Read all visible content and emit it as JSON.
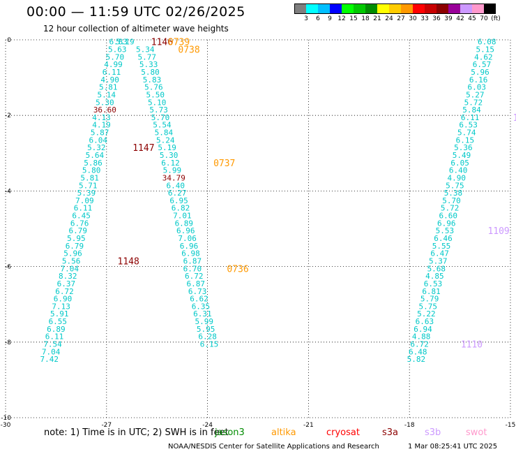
{
  "header": {
    "title": "00:00 — 11:59 UTC 02/26/2025",
    "subtitle": "12 hour collection of altimeter wave heights"
  },
  "colorbar": {
    "unit": "(ft)",
    "labels": [
      "3",
      "6",
      "9",
      "12",
      "15",
      "18",
      "21",
      "24",
      "27",
      "30",
      "33",
      "36",
      "39",
      "42",
      "45",
      "70"
    ],
    "colors": [
      "#7f7f7f",
      "#00ffff",
      "#00bfff",
      "#0000ff",
      "#00ff00",
      "#00c800",
      "#008c00",
      "#ffff00",
      "#ffcc00",
      "#ff9900",
      "#ff0000",
      "#c80000",
      "#8c0000",
      "#990099",
      "#cc99ff",
      "#ff99cc",
      "#000000"
    ]
  },
  "chart_data": {
    "type": "scatter",
    "xlim": [
      -30,
      -15
    ],
    "ylim": [
      -10,
      0
    ],
    "xticks": [
      "-30",
      "-27",
      "-24",
      "-21",
      "-18",
      "-15"
    ],
    "yticks": [
      "0",
      "-2",
      "-4",
      "-6",
      "-8",
      "-10"
    ],
    "grid": true,
    "tracks": [
      {
        "name": "track-west",
        "points": [
          {
            "x": -26.45,
            "y": -0.05,
            "label": "5.19"
          },
          {
            "x": -26.65,
            "y": -0.05,
            "label": "6.83"
          },
          {
            "x": -26.68,
            "y": -0.25,
            "label": "5.63"
          },
          {
            "x": -26.75,
            "y": -0.45,
            "label": "5.70"
          },
          {
            "x": -26.8,
            "y": -0.65,
            "label": "4.99"
          },
          {
            "x": -26.85,
            "y": -0.85,
            "label": "6.11"
          },
          {
            "x": -26.9,
            "y": -1.05,
            "label": "4.90"
          },
          {
            "x": -26.95,
            "y": -1.25,
            "label": "5.81"
          },
          {
            "x": -27.0,
            "y": -1.45,
            "label": "5.14"
          },
          {
            "x": -27.05,
            "y": -1.65,
            "label": "5.30"
          },
          {
            "x": -27.05,
            "y": -1.85,
            "label": "36.60",
            "color": "#8c0000"
          },
          {
            "x": -27.15,
            "y": -2.05,
            "label": "4.13"
          },
          {
            "x": -27.15,
            "y": -2.25,
            "label": "4.19"
          },
          {
            "x": -27.2,
            "y": -2.45,
            "label": "5.87"
          },
          {
            "x": -27.25,
            "y": -2.65,
            "label": "6.04"
          },
          {
            "x": -27.3,
            "y": -2.85,
            "label": "5.32"
          },
          {
            "x": -27.35,
            "y": -3.05,
            "label": "5.64"
          },
          {
            "x": -27.4,
            "y": -3.25,
            "label": "5.86"
          },
          {
            "x": -27.45,
            "y": -3.45,
            "label": "5.80"
          },
          {
            "x": -27.5,
            "y": -3.65,
            "label": "5.81"
          },
          {
            "x": -27.55,
            "y": -3.85,
            "label": "5.71"
          },
          {
            "x": -27.6,
            "y": -4.05,
            "label": "5.39"
          },
          {
            "x": -27.65,
            "y": -4.25,
            "label": "7.09"
          },
          {
            "x": -27.7,
            "y": -4.45,
            "label": "6.11"
          },
          {
            "x": -27.75,
            "y": -4.65,
            "label": "6.45"
          },
          {
            "x": -27.8,
            "y": -4.85,
            "label": "6.76"
          },
          {
            "x": -27.85,
            "y": -5.05,
            "label": "6.79"
          },
          {
            "x": -27.9,
            "y": -5.25,
            "label": "5.95"
          },
          {
            "x": -27.95,
            "y": -5.45,
            "label": "6.79"
          },
          {
            "x": -28.0,
            "y": -5.65,
            "label": "5.96"
          },
          {
            "x": -28.05,
            "y": -5.85,
            "label": "5.56"
          },
          {
            "x": -28.1,
            "y": -6.05,
            "label": "7.04"
          },
          {
            "x": -28.15,
            "y": -6.25,
            "label": "8.32"
          },
          {
            "x": -28.2,
            "y": -6.45,
            "label": "6.37"
          },
          {
            "x": -28.25,
            "y": -6.65,
            "label": "6.72"
          },
          {
            "x": -28.3,
            "y": -6.85,
            "label": "6.90"
          },
          {
            "x": -28.35,
            "y": -7.05,
            "label": "7.13"
          },
          {
            "x": -28.4,
            "y": -7.25,
            "label": "5.91"
          },
          {
            "x": -28.45,
            "y": -7.45,
            "label": "6.55"
          },
          {
            "x": -28.5,
            "y": -7.65,
            "label": "6.89"
          },
          {
            "x": -28.55,
            "y": -7.85,
            "label": "6.11"
          },
          {
            "x": -28.6,
            "y": -8.05,
            "label": "7.54"
          },
          {
            "x": -28.65,
            "y": -8.25,
            "label": "7.04"
          },
          {
            "x": -28.7,
            "y": -8.45,
            "label": "7.42"
          }
        ]
      },
      {
        "name": "track-center",
        "points": [
          {
            "x": -25.85,
            "y": -0.25,
            "label": "5.34"
          },
          {
            "x": -25.8,
            "y": -0.45,
            "label": "5.77"
          },
          {
            "x": -25.75,
            "y": -0.65,
            "label": "5.33"
          },
          {
            "x": -25.7,
            "y": -0.85,
            "label": "5.80"
          },
          {
            "x": -25.65,
            "y": -1.05,
            "label": "5.83"
          },
          {
            "x": -25.6,
            "y": -1.25,
            "label": "5.76"
          },
          {
            "x": -25.55,
            "y": -1.45,
            "label": "5.50"
          },
          {
            "x": -25.5,
            "y": -1.65,
            "label": "5.10"
          },
          {
            "x": -25.45,
            "y": -1.85,
            "label": "5.73"
          },
          {
            "x": -25.4,
            "y": -2.05,
            "label": "5.70"
          },
          {
            "x": -25.35,
            "y": -2.25,
            "label": "5.54"
          },
          {
            "x": -25.3,
            "y": -2.45,
            "label": "5.84"
          },
          {
            "x": -25.25,
            "y": -2.65,
            "label": "5.24"
          },
          {
            "x": -25.2,
            "y": -2.85,
            "label": "5.19"
          },
          {
            "x": -25.15,
            "y": -3.05,
            "label": "5.30"
          },
          {
            "x": -25.1,
            "y": -3.25,
            "label": "6.12"
          },
          {
            "x": -25.05,
            "y": -3.45,
            "label": "5.99"
          },
          {
            "x": -25.0,
            "y": -3.65,
            "label": "34.79",
            "color": "#8c0000"
          },
          {
            "x": -24.95,
            "y": -3.85,
            "label": "6.40"
          },
          {
            "x": -24.9,
            "y": -4.05,
            "label": "6.27"
          },
          {
            "x": -24.85,
            "y": -4.25,
            "label": "6.95"
          },
          {
            "x": -24.8,
            "y": -4.45,
            "label": "6.82"
          },
          {
            "x": -24.75,
            "y": -4.65,
            "label": "7.01"
          },
          {
            "x": -24.7,
            "y": -4.85,
            "label": "6.89"
          },
          {
            "x": -24.65,
            "y": -5.05,
            "label": "6.96"
          },
          {
            "x": -24.6,
            "y": -5.25,
            "label": "7.06"
          },
          {
            "x": -24.55,
            "y": -5.45,
            "label": "6.96"
          },
          {
            "x": -24.5,
            "y": -5.65,
            "label": "6.98"
          },
          {
            "x": -24.45,
            "y": -5.85,
            "label": "6.87"
          },
          {
            "x": -24.45,
            "y": -6.05,
            "label": "6.70"
          },
          {
            "x": -24.4,
            "y": -6.25,
            "label": "6.72"
          },
          {
            "x": -24.35,
            "y": -6.45,
            "label": "6.87"
          },
          {
            "x": -24.3,
            "y": -6.65,
            "label": "6.73"
          },
          {
            "x": -24.25,
            "y": -6.85,
            "label": "6.62"
          },
          {
            "x": -24.2,
            "y": -7.05,
            "label": "6.35"
          },
          {
            "x": -24.15,
            "y": -7.25,
            "label": "6.31"
          },
          {
            "x": -24.1,
            "y": -7.45,
            "label": "5.99"
          },
          {
            "x": -24.05,
            "y": -7.65,
            "label": "5.95"
          },
          {
            "x": -24.0,
            "y": -7.85,
            "label": "6.28"
          },
          {
            "x": -23.95,
            "y": -8.05,
            "label": "6.15"
          }
        ]
      },
      {
        "name": "track-east",
        "points": [
          {
            "x": -15.7,
            "y": -0.05,
            "label": "6.08"
          },
          {
            "x": -15.75,
            "y": -0.25,
            "label": "5.15"
          },
          {
            "x": -15.8,
            "y": -0.45,
            "label": "4.62"
          },
          {
            "x": -15.85,
            "y": -0.65,
            "label": "6.57"
          },
          {
            "x": -15.9,
            "y": -0.85,
            "label": "5.96"
          },
          {
            "x": -15.95,
            "y": -1.05,
            "label": "6.16"
          },
          {
            "x": -16.0,
            "y": -1.25,
            "label": "6.03"
          },
          {
            "x": -16.05,
            "y": -1.45,
            "label": "5.27"
          },
          {
            "x": -16.1,
            "y": -1.65,
            "label": "5.72"
          },
          {
            "x": -16.15,
            "y": -1.85,
            "label": "5.84"
          },
          {
            "x": -16.2,
            "y": -2.05,
            "label": "6.11"
          },
          {
            "x": -16.25,
            "y": -2.25,
            "label": "6.53"
          },
          {
            "x": -16.3,
            "y": -2.45,
            "label": "5.74"
          },
          {
            "x": -16.35,
            "y": -2.65,
            "label": "6.15"
          },
          {
            "x": -16.4,
            "y": -2.85,
            "label": "5.36"
          },
          {
            "x": -16.45,
            "y": -3.05,
            "label": "5.49"
          },
          {
            "x": -16.5,
            "y": -3.25,
            "label": "6.05"
          },
          {
            "x": -16.55,
            "y": -3.45,
            "label": "6.40"
          },
          {
            "x": -16.6,
            "y": -3.65,
            "label": "4.90"
          },
          {
            "x": -16.65,
            "y": -3.85,
            "label": "5.75"
          },
          {
            "x": -16.7,
            "y": -4.05,
            "label": "5.38"
          },
          {
            "x": -16.75,
            "y": -4.25,
            "label": "5.70"
          },
          {
            "x": -16.8,
            "y": -4.45,
            "label": "5.72"
          },
          {
            "x": -16.85,
            "y": -4.65,
            "label": "6.60"
          },
          {
            "x": -16.9,
            "y": -4.85,
            "label": "6.96"
          },
          {
            "x": -16.95,
            "y": -5.05,
            "label": "5.53"
          },
          {
            "x": -17.0,
            "y": -5.25,
            "label": "6.46"
          },
          {
            "x": -17.05,
            "y": -5.45,
            "label": "5.55"
          },
          {
            "x": -17.1,
            "y": -5.65,
            "label": "6.47"
          },
          {
            "x": -17.15,
            "y": -5.85,
            "label": "5.37"
          },
          {
            "x": -17.2,
            "y": -6.05,
            "label": "5.68"
          },
          {
            "x": -17.25,
            "y": -6.25,
            "label": "4.85"
          },
          {
            "x": -17.3,
            "y": -6.45,
            "label": "6.53"
          },
          {
            "x": -17.35,
            "y": -6.65,
            "label": "6.81"
          },
          {
            "x": -17.4,
            "y": -6.85,
            "label": "5.79"
          },
          {
            "x": -17.45,
            "y": -7.05,
            "label": "5.75"
          },
          {
            "x": -17.5,
            "y": -7.25,
            "label": "5.22"
          },
          {
            "x": -17.55,
            "y": -7.45,
            "label": "6.63"
          },
          {
            "x": -17.6,
            "y": -7.65,
            "label": "6.94"
          },
          {
            "x": -17.65,
            "y": -7.85,
            "label": "4.88"
          },
          {
            "x": -17.7,
            "y": -8.05,
            "label": "6.72"
          },
          {
            "x": -17.75,
            "y": -8.25,
            "label": "6.48"
          },
          {
            "x": -17.8,
            "y": -8.45,
            "label": "5.82"
          }
        ]
      }
    ],
    "time_labels": [
      {
        "x": -25.35,
        "y": -0.05,
        "label": "1146",
        "color": "#8c0000"
      },
      {
        "x": -24.85,
        "y": -0.05,
        "label": "0739",
        "color": "#ff9900"
      },
      {
        "x": -24.55,
        "y": -0.25,
        "label": "0738",
        "color": "#ff9900"
      },
      {
        "x": -25.9,
        "y": -2.85,
        "label": "1147",
        "color": "#8c0000"
      },
      {
        "x": -23.5,
        "y": -3.25,
        "label": "0737",
        "color": "#ff9900"
      },
      {
        "x": -26.35,
        "y": -5.85,
        "label": "1148",
        "color": "#8c0000"
      },
      {
        "x": -23.1,
        "y": -6.05,
        "label": "0736",
        "color": "#ff9900"
      },
      {
        "x": -14.4,
        "y": -0.05,
        "label": "1107",
        "color": "#cc99ff"
      },
      {
        "x": -14.6,
        "y": -2.05,
        "label": "1108",
        "color": "#cc99ff"
      },
      {
        "x": -15.35,
        "y": -5.05,
        "label": "1109",
        "color": "#cc99ff"
      },
      {
        "x": -16.15,
        "y": -8.05,
        "label": "1110",
        "color": "#cc99ff"
      }
    ]
  },
  "footer": {
    "note": "note:  1) Time is in UTC; 2) SWH is in feet",
    "satellites": [
      {
        "name": "jason3",
        "color": "#008c00"
      },
      {
        "name": "altika",
        "color": "#ff9900"
      },
      {
        "name": "cryosat",
        "color": "#ff0000"
      },
      {
        "name": "s3a",
        "color": "#8c0000"
      },
      {
        "name": "s3b",
        "color": "#cc99ff"
      },
      {
        "name": "swot",
        "color": "#ff99cc"
      }
    ],
    "credit": "NOAA/NESDIS Center for Satellite Applications and Research",
    "timestamp": "1 Mar 08:25:41 UTC 2025"
  }
}
